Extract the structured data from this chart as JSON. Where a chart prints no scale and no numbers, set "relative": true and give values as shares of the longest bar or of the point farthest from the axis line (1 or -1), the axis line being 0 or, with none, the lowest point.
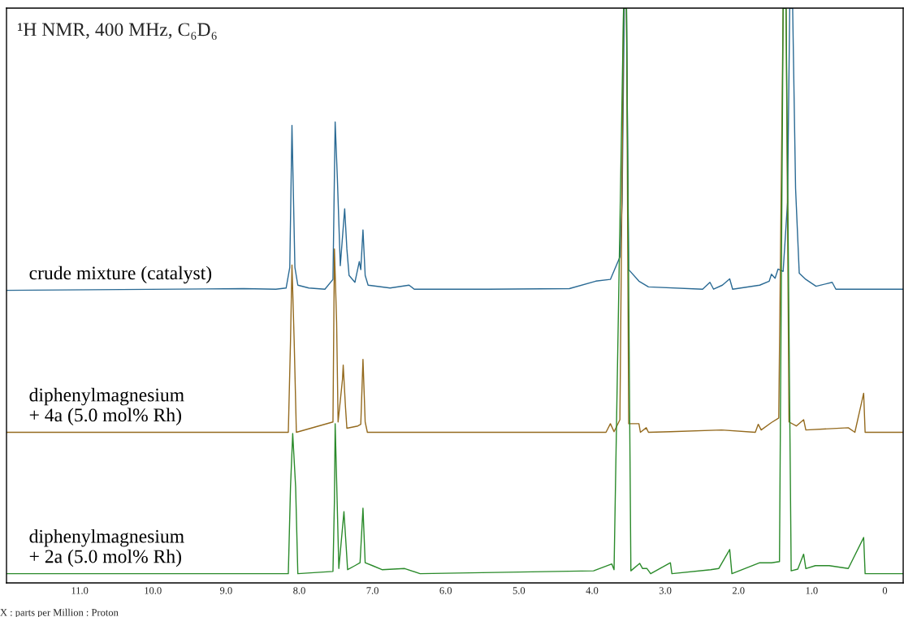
{
  "chart_data": {
    "type": "line",
    "title": "¹H NMR, 400 MHz, C₆D₆",
    "xlabel": "X : parts per Million : Proton",
    "relative": true,
    "legend": false,
    "grid": false,
    "tick_labels": "x",
    "xlim": [
      12.0,
      -0.25
    ],
    "xticks": [
      {
        "value": 11,
        "label": "11.0"
      },
      {
        "value": 10,
        "label": "10.0"
      },
      {
        "value": 9,
        "label": "9.0"
      },
      {
        "value": 8,
        "label": "8.0"
      },
      {
        "value": 7,
        "label": "7.0"
      },
      {
        "value": 6,
        "label": "6.0"
      },
      {
        "value": 5,
        "label": "5.0"
      },
      {
        "value": 4,
        "label": "4.0"
      },
      {
        "value": 3,
        "label": "3.0"
      },
      {
        "value": 2,
        "label": "2.0"
      },
      {
        "value": 1,
        "label": "1.0"
      },
      0
    ],
    "series": [
      {
        "name": "crude mixture (catalyst)",
        "color": "#2a6a94",
        "x": [
          12.0,
          8.76,
          8.32,
          8.18,
          8.13,
          8.1,
          8.06,
          8.02,
          7.87,
          7.65,
          7.54,
          7.51,
          7.48,
          7.44,
          7.38,
          7.35,
          7.32,
          7.24,
          7.18,
          7.16,
          7.13,
          7.1,
          7.06,
          6.76,
          6.5,
          6.43,
          5.42,
          4.31,
          3.95,
          3.75,
          3.62,
          3.59,
          3.56,
          3.53,
          3.5,
          3.36,
          3.23,
          2.49,
          2.39,
          2.34,
          2.22,
          2.12,
          2.08,
          1.71,
          1.58,
          1.55,
          1.5,
          1.46,
          1.39,
          1.33,
          1.3,
          1.26,
          1.22,
          1.17,
          1.08,
          0.94,
          0.72,
          0.67,
          -0.25
        ],
        "values": [
          0.509,
          0.512,
          0.511,
          0.513,
          0.549,
          0.796,
          0.549,
          0.518,
          0.513,
          0.511,
          0.528,
          0.802,
          0.704,
          0.552,
          0.651,
          0.581,
          0.535,
          0.523,
          0.559,
          0.545,
          0.614,
          0.535,
          0.518,
          0.513,
          0.518,
          0.511,
          0.511,
          0.512,
          0.525,
          0.528,
          0.567,
          0.662,
          1.0,
          1.0,
          0.545,
          0.525,
          0.515,
          0.511,
          0.523,
          0.511,
          0.518,
          0.529,
          0.511,
          0.518,
          0.525,
          0.537,
          0.53,
          0.546,
          0.542,
          0.662,
          1.0,
          1.0,
          0.686,
          0.539,
          0.528,
          0.516,
          0.523,
          0.511,
          0.511
        ]
      },
      {
        "name": "diphenylmagnesium\n+ 4a (5.0 mol% Rh)",
        "color": "#946a1e",
        "x": [
          12.0,
          8.15,
          8.12,
          8.1,
          8.07,
          8.04,
          7.54,
          7.52,
          7.49,
          7.47,
          7.41,
          7.4,
          7.37,
          7.35,
          7.2,
          7.16,
          7.13,
          7.1,
          7.07,
          3.81,
          3.75,
          3.7,
          3.62,
          3.57,
          3.53,
          3.5,
          3.36,
          3.34,
          3.26,
          3.23,
          2.93,
          2.23,
          1.77,
          1.73,
          1.69,
          1.55,
          1.45,
          1.39,
          1.35,
          1.31,
          1.21,
          1.11,
          1.08,
          0.5,
          0.41,
          0.29,
          0.27,
          -0.25
        ],
        "values": [
          0.262,
          0.262,
          0.421,
          0.553,
          0.421,
          0.262,
          0.28,
          0.581,
          0.453,
          0.28,
          0.354,
          0.379,
          0.308,
          0.269,
          0.273,
          0.276,
          0.389,
          0.28,
          0.262,
          0.262,
          0.277,
          0.263,
          0.284,
          1.0,
          1.0,
          0.277,
          0.277,
          0.262,
          0.27,
          0.262,
          0.263,
          0.266,
          0.262,
          0.276,
          0.266,
          0.279,
          0.287,
          1.0,
          1.0,
          0.28,
          0.273,
          0.284,
          0.266,
          0.27,
          0.262,
          0.33,
          0.262,
          0.262
        ]
      },
      {
        "name": "diphenylmagnesium\n+ 2a (5.0 mol% Rh)",
        "color": "#2a8a2a",
        "x": [
          12.0,
          8.15,
          8.12,
          8.09,
          8.05,
          8.02,
          7.54,
          7.52,
          7.51,
          7.49,
          7.46,
          7.39,
          7.36,
          7.34,
          7.24,
          7.17,
          7.13,
          7.1,
          7.0,
          6.87,
          6.56,
          6.35,
          3.98,
          3.73,
          3.7,
          3.57,
          3.53,
          3.47,
          3.35,
          3.31,
          3.25,
          3.2,
          2.93,
          2.91,
          2.38,
          2.27,
          2.12,
          2.09,
          1.71,
          1.55,
          1.44,
          1.39,
          1.35,
          1.28,
          1.19,
          1.11,
          1.08,
          0.95,
          0.85,
          0.76,
          0.5,
          0.29,
          0.27,
          -0.25
        ],
        "values": [
          0.016,
          0.016,
          0.167,
          0.26,
          0.167,
          0.016,
          0.02,
          0.143,
          0.277,
          0.178,
          0.025,
          0.124,
          0.064,
          0.023,
          0.03,
          0.035,
          0.13,
          0.035,
          0.03,
          0.023,
          0.025,
          0.016,
          0.021,
          0.033,
          0.023,
          1.0,
          1.0,
          0.021,
          0.034,
          0.025,
          0.025,
          0.016,
          0.035,
          0.016,
          0.023,
          0.025,
          0.058,
          0.016,
          0.035,
          0.035,
          0.037,
          1.0,
          1.0,
          0.021,
          0.024,
          0.05,
          0.025,
          0.03,
          0.03,
          0.03,
          0.025,
          0.079,
          0.016,
          0.016
        ]
      }
    ]
  }
}
